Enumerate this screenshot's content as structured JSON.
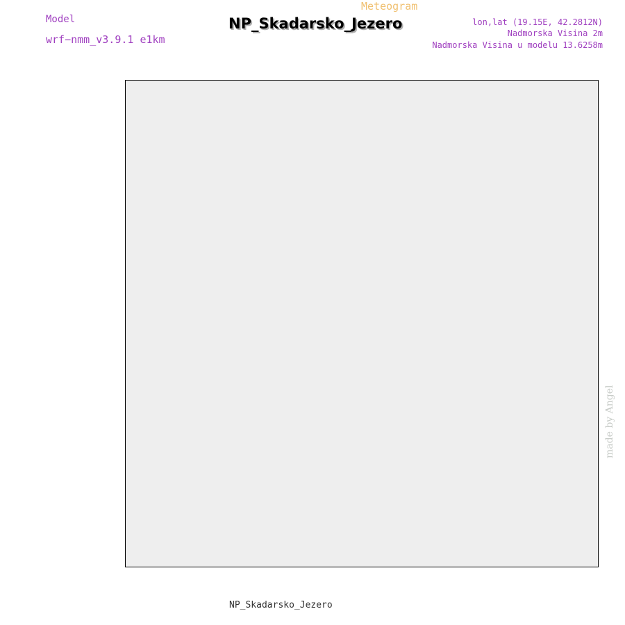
{
  "header": {
    "model_label": "Model",
    "model_name": "wrf−nmm_v3.9.1 e1km",
    "title": "NP_Skadarsko_Jezero",
    "meteogram_label": "Meteogram",
    "coords": "lon,lat (19.15E, 42.2812N)",
    "elevation": "Nadmorska Visina 2m",
    "model_elevation": "Nadmorska Visina u modelu 13.6258m"
  },
  "watermark": "made by Angel",
  "footer_station": "NP_Skadarsko_Jezero",
  "colors": {
    "pressure": "#1ca8e8",
    "wind_green": "#10c010",
    "temp_2m": "#e83030",
    "sfc_temp": "#e0a030",
    "dewpt": "#10c010",
    "high_cloud": "#1ca8e8",
    "mid_cloud": "#e0a030",
    "low_cloud": "#c01890",
    "precip_total": "#40b020",
    "precip_conv": "#e83030",
    "precip_freezing": "#f08020",
    "snow": "#4040e0",
    "hail": "#20c0c0",
    "purple_label": "#a040c0"
  }
}
